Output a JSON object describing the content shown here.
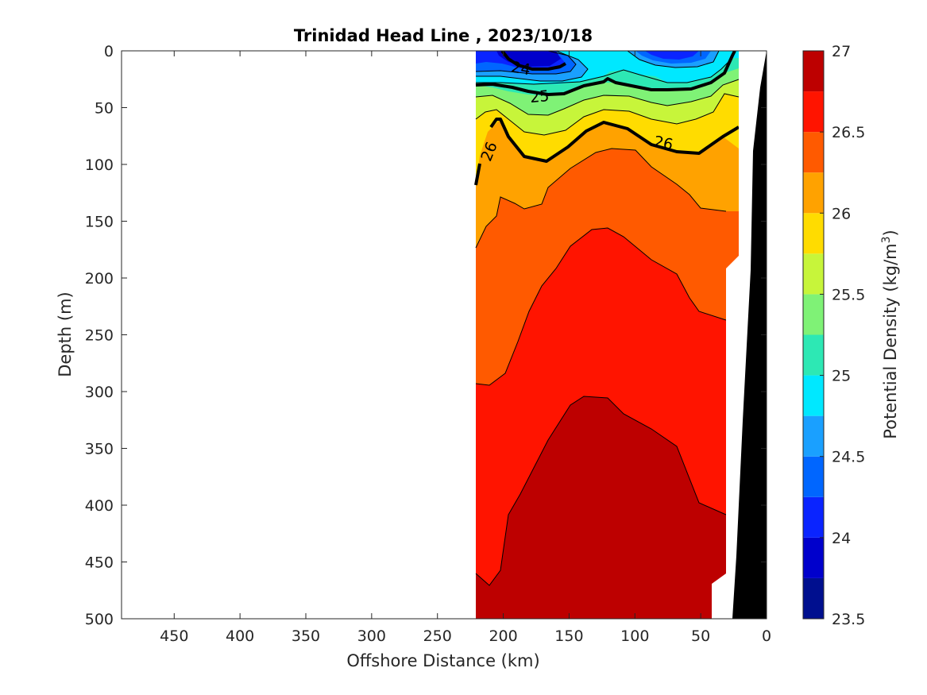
{
  "chart_data": {
    "type": "contour",
    "title": "Trinidad Head Line , 2023/10/18",
    "xlabel": "Offshore Distance (km)",
    "ylabel": "Depth (m)",
    "xlim": [
      490,
      0
    ],
    "ylim": [
      0,
      500
    ],
    "x_reversed": true,
    "y_reversed": true,
    "xticks": [
      "450",
      "400",
      "350",
      "300",
      "250",
      "200",
      "150",
      "100",
      "50",
      "0"
    ],
    "yticks": [
      "0",
      "50",
      "100",
      "150",
      "200",
      "250",
      "300",
      "350",
      "400",
      "450",
      "500"
    ],
    "colorbar": {
      "label": "Potential Density (kg/m",
      "label_superscript": "3",
      "label_suffix": ")",
      "range": [
        23.5,
        27
      ],
      "tick_labels": [
        "27",
        "26.5",
        "26",
        "25.5",
        "25",
        "24.5",
        "24",
        "23.5"
      ],
      "levels": [
        23.5,
        23.75,
        24,
        24.25,
        24.5,
        24.75,
        25,
        25.25,
        25.5,
        25.75,
        26,
        26.25,
        26.5,
        26.75,
        27
      ],
      "colors": [
        "#000f8f",
        "#0000cc",
        "#0a24ff",
        "#0066ff",
        "#1aa0ff",
        "#00e8ff",
        "#2de8b4",
        "#7ff276",
        "#c7f53a",
        "#ffdc00",
        "#ffa200",
        "#ff5a00",
        "#ff1400",
        "#bd0000"
      ]
    },
    "isopycnal_labels": [
      {
        "text": "24",
        "x": 175,
        "depth": 14
      },
      {
        "text": "25",
        "x": 152,
        "depth": 38
      },
      {
        "text": "26",
        "x": 210,
        "depth": 87
      },
      {
        "text": "26",
        "x": 78,
        "depth": 83
      }
    ],
    "data_extent_km": [
      0,
      220
    ],
    "bottom_bathymetry": "black wedge near shore (0-25 km)"
  }
}
